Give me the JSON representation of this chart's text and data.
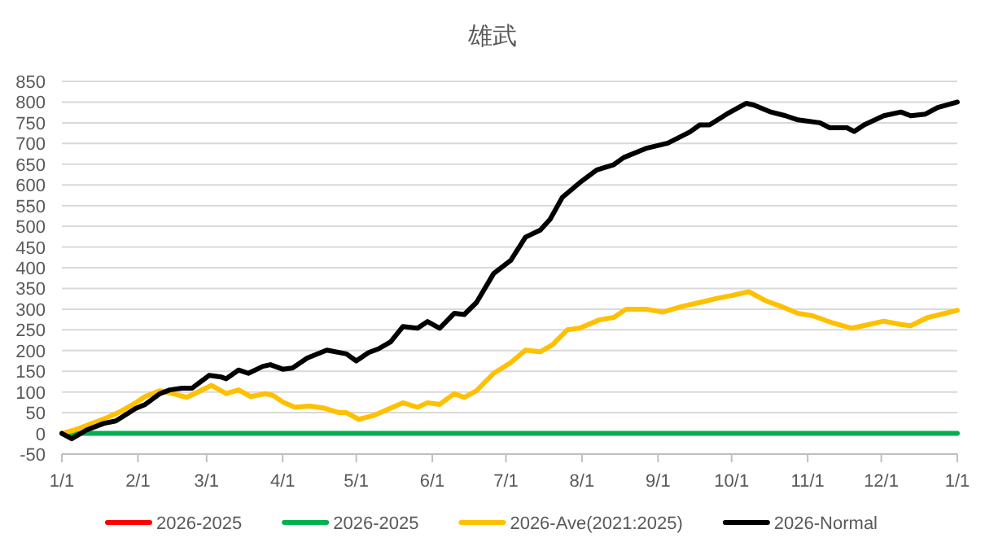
{
  "chart_data": {
    "type": "line",
    "title": "雄武",
    "xlim": [
      "2026-01-01",
      "2027-01-01"
    ],
    "xticks": [
      {
        "value": "2026-01-01",
        "label": "1/1"
      },
      {
        "value": "2026-02-01",
        "label": "2/1"
      },
      {
        "value": "2026-03-01",
        "label": "3/1"
      },
      {
        "value": "2026-04-01",
        "label": "4/1"
      },
      {
        "value": "2026-05-01",
        "label": "5/1"
      },
      {
        "value": "2026-06-01",
        "label": "6/1"
      },
      {
        "value": "2026-07-01",
        "label": "7/1"
      },
      {
        "value": "2026-08-01",
        "label": "8/1"
      },
      {
        "value": "2026-09-01",
        "label": "9/1"
      },
      {
        "value": "2026-10-01",
        "label": "10/1"
      },
      {
        "value": "2026-11-01",
        "label": "11/1"
      },
      {
        "value": "2026-12-01",
        "label": "12/1"
      },
      {
        "value": "2027-01-01",
        "label": "1/1"
      }
    ],
    "ylim": [
      -50,
      850
    ],
    "yticks": [
      -50,
      0,
      50,
      100,
      150,
      200,
      250,
      300,
      350,
      400,
      450,
      500,
      550,
      600,
      650,
      700,
      750,
      800,
      850
    ],
    "grid": "y",
    "legend": "bottom",
    "series": [
      {
        "name": "2026-2025",
        "color": "#ff0000",
        "values": [
          null,
          null
        ]
      },
      {
        "name": "2026-2025",
        "color": "#00b050",
        "x": [
          "2026-01-01",
          "2027-01-01"
        ],
        "values": [
          0,
          0
        ]
      },
      {
        "name": "2026-Ave(2021:2025)",
        "color": "#ffc000",
        "x": [
          "2026-01-01",
          "2026-01-06",
          "2026-01-12",
          "2026-01-19",
          "2026-01-24",
          "2026-01-30",
          "2026-02-04",
          "2026-02-10",
          "2026-02-15",
          "2026-02-21",
          "2026-02-24",
          "2026-03-03",
          "2026-03-09",
          "2026-03-14",
          "2026-03-19",
          "2026-03-25",
          "2026-03-28",
          "2026-04-01",
          "2026-04-06",
          "2026-04-12",
          "2026-04-18",
          "2026-04-24",
          "2026-04-27",
          "2026-05-02",
          "2026-05-08",
          "2026-05-15",
          "2026-05-20",
          "2026-05-26",
          "2026-05-30",
          "2026-06-04",
          "2026-06-10",
          "2026-06-14",
          "2026-06-19",
          "2026-06-26",
          "2026-07-03",
          "2026-07-09",
          "2026-07-15",
          "2026-07-20",
          "2026-07-26",
          "2026-07-31",
          "2026-08-08",
          "2026-08-14",
          "2026-08-19",
          "2026-08-27",
          "2026-09-03",
          "2026-09-11",
          "2026-09-18",
          "2026-09-25",
          "2026-10-01",
          "2026-10-08",
          "2026-10-15",
          "2026-10-21",
          "2026-10-28",
          "2026-11-03",
          "2026-11-11",
          "2026-11-19",
          "2026-11-26",
          "2026-12-02",
          "2026-12-09",
          "2026-12-13",
          "2026-12-20",
          "2026-12-27",
          "2027-01-01"
        ],
        "values": [
          0,
          8,
          21,
          37,
          50,
          70,
          89,
          103,
          96,
          87,
          96,
          116,
          96,
          105,
          89,
          96,
          92,
          76,
          63,
          66,
          61,
          50,
          50,
          34,
          43,
          61,
          74,
          63,
          74,
          70,
          96,
          87,
          103,
          145,
          171,
          201,
          197,
          214,
          250,
          254,
          274,
          280,
          300,
          300,
          293,
          307,
          316,
          326,
          333,
          342,
          320,
          307,
          290,
          284,
          267,
          254,
          263,
          271,
          263,
          260,
          280,
          290,
          297
        ]
      },
      {
        "name": "2026-Normal",
        "color": "#000000",
        "x": [
          "2026-01-01",
          "2026-01-05",
          "2026-01-11",
          "2026-01-18",
          "2026-01-23",
          "2026-01-31",
          "2026-02-04",
          "2026-02-10",
          "2026-02-14",
          "2026-02-19",
          "2026-02-23",
          "2026-03-02",
          "2026-03-07",
          "2026-03-09",
          "2026-03-14",
          "2026-03-18",
          "2026-03-24",
          "2026-03-27",
          "2026-04-01",
          "2026-04-05",
          "2026-04-11",
          "2026-04-19",
          "2026-04-27",
          "2026-05-01",
          "2026-05-06",
          "2026-05-10",
          "2026-05-15",
          "2026-05-20",
          "2026-05-26",
          "2026-05-30",
          "2026-06-04",
          "2026-06-10",
          "2026-06-14",
          "2026-06-19",
          "2026-06-26",
          "2026-07-03",
          "2026-07-09",
          "2026-07-15",
          "2026-07-19",
          "2026-07-24",
          "2026-07-31",
          "2026-08-07",
          "2026-08-14",
          "2026-08-18",
          "2026-08-27",
          "2026-09-05",
          "2026-09-14",
          "2026-09-18",
          "2026-09-22",
          "2026-09-29",
          "2026-10-07",
          "2026-10-10",
          "2026-10-17",
          "2026-10-23",
          "2026-10-28",
          "2026-11-06",
          "2026-11-10",
          "2026-11-17",
          "2026-11-20",
          "2026-11-24",
          "2026-12-02",
          "2026-12-09",
          "2026-12-13",
          "2026-12-19",
          "2026-12-24",
          "2027-01-01"
        ],
        "values": [
          0,
          -13,
          8,
          24,
          30,
          60,
          70,
          96,
          105,
          109,
          109,
          140,
          136,
          132,
          153,
          145,
          162,
          166,
          155,
          158,
          182,
          201,
          192,
          175,
          195,
          204,
          221,
          258,
          254,
          270,
          254,
          290,
          287,
          316,
          386,
          418,
          474,
          491,
          517,
          570,
          605,
          636,
          649,
          666,
          688,
          701,
          728,
          745,
          745,
          771,
          797,
          793,
          776,
          767,
          757,
          750,
          738,
          738,
          729,
          745,
          767,
          776,
          767,
          771,
          787,
          800
        ]
      }
    ]
  }
}
